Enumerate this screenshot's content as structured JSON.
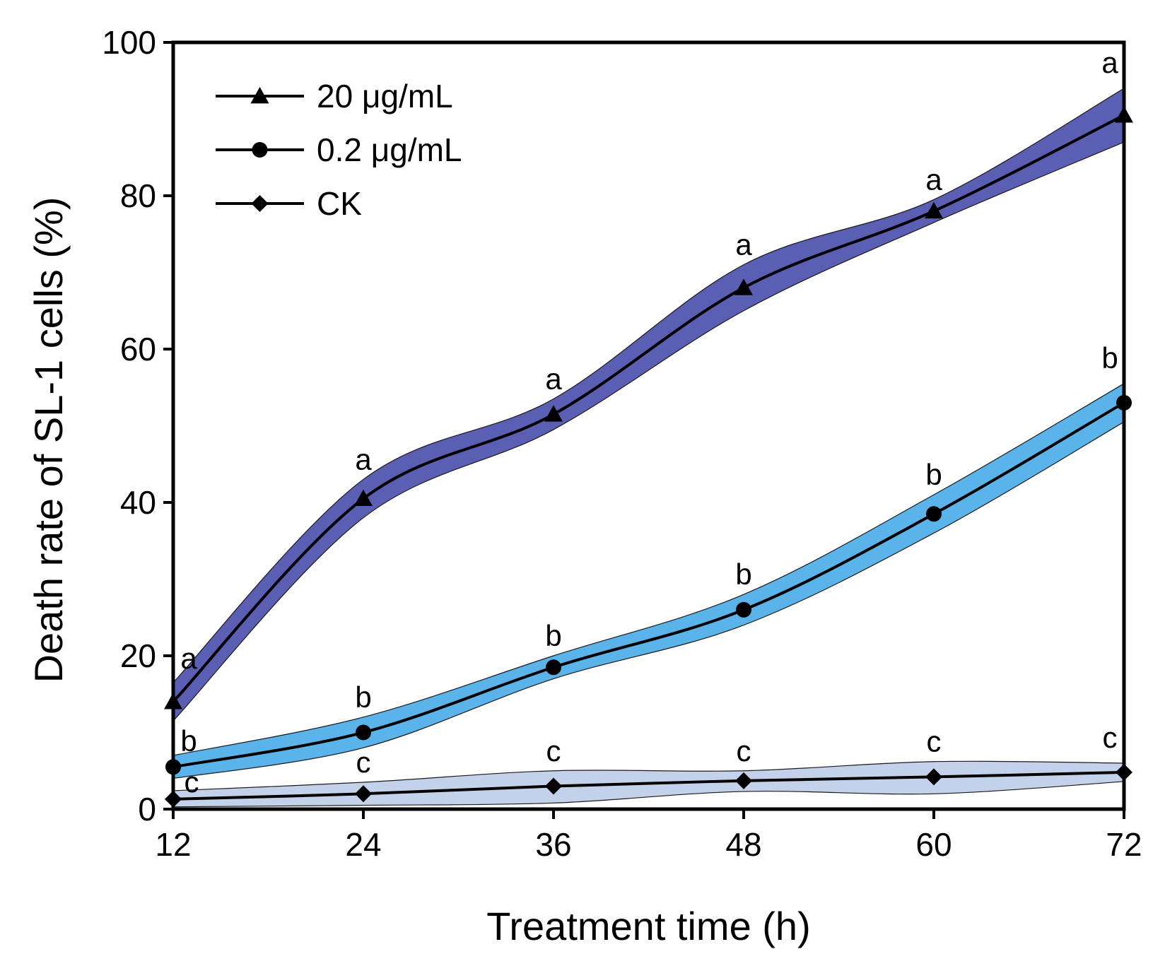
{
  "chart_data": {
    "type": "line",
    "title": "",
    "xlabel": "Treatment time (h)",
    "ylabel": "Death rate of SL-1 cells (%)",
    "x": [
      12,
      24,
      36,
      48,
      60,
      72
    ],
    "xticks": [
      "12",
      "24",
      "36",
      "48",
      "60",
      "72"
    ],
    "yticks": [
      "0",
      "20",
      "40",
      "60",
      "80",
      "100"
    ],
    "xlim": [
      12,
      72
    ],
    "ylim": [
      0,
      100
    ],
    "grid": false,
    "legend_position": "top-left",
    "series": [
      {
        "name": "20 μg/mL",
        "marker": "triangle",
        "band_color": "#5b5fb3",
        "values": [
          14,
          40.5,
          51.5,
          68,
          78,
          90.5
        ],
        "lower": [
          11.5,
          38,
          49.5,
          65,
          76.5,
          87
        ],
        "upper": [
          16.5,
          43,
          53.5,
          71,
          79.5,
          94
        ],
        "sig_labels": [
          "a",
          "a",
          "a",
          "a",
          "a",
          "a"
        ]
      },
      {
        "name": "0.2 μg/mL",
        "marker": "circle",
        "band_color": "#5ab4ea",
        "values": [
          5.5,
          10,
          18.5,
          26,
          38.5,
          53
        ],
        "lower": [
          4,
          8,
          17,
          24,
          36,
          50.5
        ],
        "upper": [
          7,
          12,
          20,
          28,
          41,
          55.5
        ],
        "sig_labels": [
          "b",
          "b",
          "b",
          "b",
          "b",
          "b"
        ]
      },
      {
        "name": "CK",
        "marker": "diamond",
        "band_color": "#c3d2ea",
        "values": [
          1.3,
          2,
          3,
          3.7,
          4.2,
          4.8
        ],
        "lower": [
          0.3,
          0.5,
          0.8,
          2.3,
          2,
          3.6
        ],
        "upper": [
          2.4,
          3.5,
          5,
          5,
          6.2,
          6
        ],
        "sig_labels": [
          "c",
          "c",
          "c",
          "c",
          "c",
          "c"
        ]
      }
    ]
  }
}
